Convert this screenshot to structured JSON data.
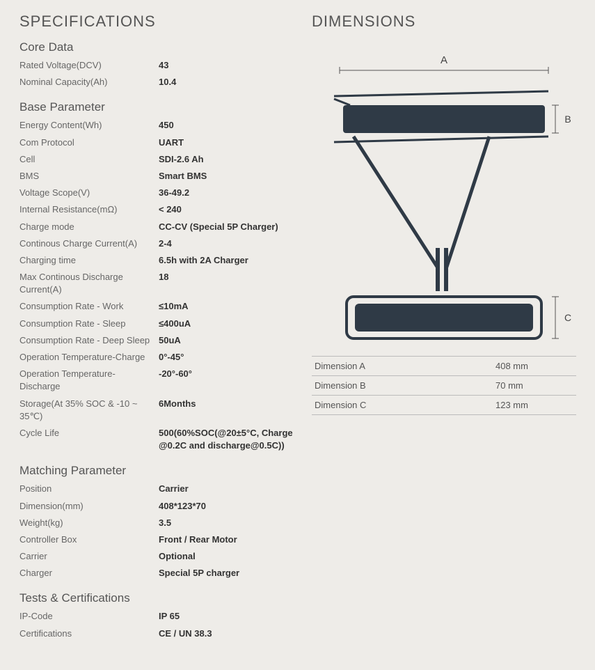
{
  "specifications": {
    "title": "SPECIFICATIONS",
    "groups": [
      {
        "title": "Core Data",
        "rows": [
          {
            "label": "Rated Voltage(DCV)",
            "value": "43"
          },
          {
            "label": "Nominal Capacity(Ah)",
            "value": "10.4"
          }
        ]
      },
      {
        "title": "Base Parameter",
        "rows": [
          {
            "label": "Energy Content(Wh)",
            "value": "450"
          },
          {
            "label": "Com Protocol",
            "value": "UART"
          },
          {
            "label": "Cell",
            "value": "SDI-2.6 Ah"
          },
          {
            "label": "BMS",
            "value": "Smart BMS"
          },
          {
            "label": "Voltage Scope(V)",
            "value": "36-49.2"
          },
          {
            "label": "Internal Resistance(mΩ)",
            "value": "< 240"
          },
          {
            "label": "Charge mode",
            "value": "CC-CV (Special 5P Charger)"
          },
          {
            "label": "Continous Charge Current(A)",
            "value": "2-4"
          },
          {
            "label": "Charging time",
            "value": "6.5h with 2A Charger"
          },
          {
            "label": "Max Continous Discharge Current(A)",
            "value": "18"
          },
          {
            "label": "Consumption Rate - Work",
            "value": "≤10mA"
          },
          {
            "label": "Consumption Rate - Sleep",
            "value": "≤400uA"
          },
          {
            "label": "Consumption Rate - Deep Sleep",
            "value": "50uA"
          },
          {
            "label": "Operation Temperature-Charge",
            "value": "0°-45°"
          },
          {
            "label": "Operation Temperature-Discharge",
            "value": "-20°-60°"
          },
          {
            "label": "Storage(At 35% SOC & -10 ~ 35℃)",
            "value": "6Months"
          },
          {
            "label": "Cycle Life",
            "value": "500(60%SOC(@20±5°C, Charge @0.2C and discharge@0.5C))"
          }
        ]
      },
      {
        "title": "Matching Parameter",
        "rows": [
          {
            "label": "Position",
            "value": "Carrier"
          },
          {
            "label": "Dimension(mm)",
            "value": "408*123*70"
          },
          {
            "label": "Weight(kg)",
            "value": "3.5"
          },
          {
            "label": "Controller Box",
            "value": "Front / Rear Motor"
          },
          {
            "label": "Carrier",
            "value": "Optional"
          },
          {
            "label": "Charger",
            "value": "Special 5P charger"
          }
        ]
      },
      {
        "title": "Tests & Certifications",
        "rows": [
          {
            "label": "IP-Code",
            "value": "IP 65"
          },
          {
            "label": "Certifications",
            "value": "CE / UN 38.3"
          }
        ]
      }
    ]
  },
  "dimensions": {
    "title": "DIMENSIONS",
    "diagram": {
      "shape_fill": "#2f3a46",
      "stroke": "#2f3a46",
      "background": "#eeece8",
      "label_color": "#444",
      "label_A": "A",
      "label_B": "B",
      "label_C": "C"
    },
    "table": [
      {
        "label": "Dimension A",
        "value": "408 mm"
      },
      {
        "label": "Dimension B",
        "value": "70 mm"
      },
      {
        "label": "Dimension C",
        "value": "123 mm"
      }
    ]
  }
}
